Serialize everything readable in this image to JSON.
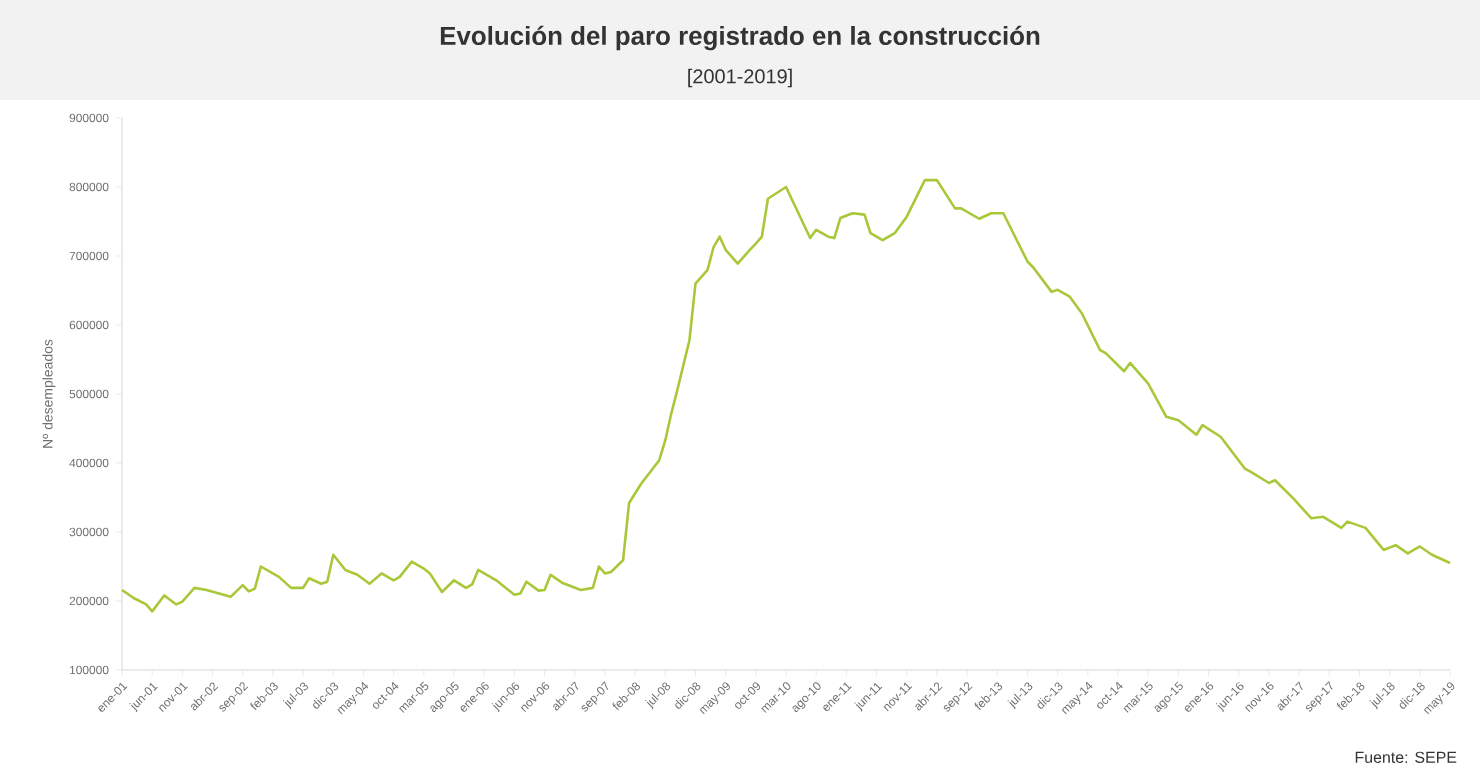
{
  "chart_data": {
    "type": "line",
    "title": "Evolución del paro registrado en la construcción",
    "subtitle": "[2001-2019]",
    "ylabel": "Nº desempleados",
    "annotations": [
      "Fuente: SEPE"
    ],
    "x": [
      "2001-01",
      "2001-03",
      "2001-05",
      "2001-06",
      "2001-08",
      "2001-10",
      "2001-11",
      "2002-01",
      "2002-03",
      "2002-07",
      "2002-09",
      "2002-10",
      "2002-11",
      "2002-12",
      "2003-03",
      "2003-05",
      "2003-07",
      "2003-08",
      "2003-10",
      "2003-11",
      "2003-12",
      "2004-02",
      "2004-04",
      "2004-06",
      "2004-08",
      "2004-10",
      "2004-11",
      "2005-01",
      "2005-03",
      "2005-04",
      "2005-06",
      "2005-08",
      "2005-10",
      "2005-11",
      "2005-12",
      "2006-03",
      "2006-06",
      "2006-07",
      "2006-08",
      "2006-10",
      "2006-11",
      "2006-12",
      "2007-02",
      "2007-05",
      "2007-07",
      "2007-08",
      "2007-09",
      "2007-10",
      "2007-12",
      "2008-01",
      "2008-03",
      "2008-06",
      "2008-07",
      "2008-08",
      "2008-09",
      "2008-11",
      "2008-12",
      "2009-02",
      "2009-03",
      "2009-04",
      "2009-05",
      "2009-07",
      "2009-09",
      "2009-10",
      "2009-11",
      "2009-12",
      "2010-03",
      "2010-07",
      "2010-08",
      "2010-10",
      "2010-11",
      "2010-12",
      "2011-02",
      "2011-04",
      "2011-05",
      "2011-07",
      "2011-09",
      "2011-11",
      "2012-02",
      "2012-04",
      "2012-07",
      "2012-08",
      "2012-11",
      "2013-01",
      "2013-03",
      "2013-07",
      "2013-08",
      "2013-11",
      "2013-12",
      "2014-02",
      "2014-04",
      "2014-07",
      "2014-08",
      "2014-11",
      "2014-12",
      "2015-03",
      "2015-06",
      "2015-08",
      "2015-11",
      "2015-12",
      "2016-03",
      "2016-07",
      "2016-08",
      "2016-11",
      "2016-12",
      "2017-03",
      "2017-06",
      "2017-08",
      "2017-11",
      "2017-12",
      "2018-03",
      "2018-06",
      "2018-08",
      "2018-10",
      "2018-12",
      "2019-02",
      "2019-05"
    ],
    "series": [
      {
        "color": "#a8c83a",
        "values": [
          216000,
          204000,
          195000,
          185000,
          208000,
          195000,
          199000,
          219000,
          216000,
          206000,
          223000,
          214000,
          218000,
          250000,
          235000,
          219000,
          219000,
          233000,
          225000,
          228000,
          267000,
          245000,
          238000,
          225000,
          240000,
          230000,
          235000,
          257000,
          247000,
          240000,
          213000,
          230000,
          219000,
          224000,
          245000,
          230000,
          209000,
          211000,
          228000,
          215000,
          216000,
          238000,
          226000,
          216000,
          219000,
          250000,
          240000,
          242000,
          259000,
          342000,
          370000,
          404000,
          433000,
          472000,
          506000,
          578000,
          660000,
          680000,
          713000,
          728000,
          709000,
          689000,
          709000,
          718000,
          728000,
          783000,
          800000,
          726000,
          738000,
          728000,
          726000,
          755000,
          762000,
          760000,
          733000,
          723000,
          733000,
          757000,
          810000,
          810000,
          769000,
          769000,
          754000,
          762000,
          762000,
          692000,
          683000,
          648000,
          651000,
          641000,
          617000,
          564000,
          559000,
          533000,
          545000,
          515000,
          467000,
          462000,
          441000,
          455000,
          438000,
          392000,
          387000,
          371000,
          375000,
          349000,
          320000,
          322000,
          306000,
          315000,
          306000,
          274000,
          281000,
          269000,
          279000,
          267000,
          255000
        ]
      }
    ],
    "xlim": [
      "2001-01",
      "2019-05"
    ],
    "xticks": [
      {
        "value": "2001-01",
        "label": "ene-01"
      },
      {
        "value": "2001-06",
        "label": "jun-01"
      },
      {
        "value": "2001-11",
        "label": "nov-01"
      },
      {
        "value": "2002-04",
        "label": "abr-02"
      },
      {
        "value": "2002-09",
        "label": "sep-02"
      },
      {
        "value": "2003-02",
        "label": "feb-03"
      },
      {
        "value": "2003-07",
        "label": "jul-03"
      },
      {
        "value": "2003-12",
        "label": "dic-03"
      },
      {
        "value": "2004-05",
        "label": "may-04"
      },
      {
        "value": "2004-10",
        "label": "oct-04"
      },
      {
        "value": "2005-03",
        "label": "mar-05"
      },
      {
        "value": "2005-08",
        "label": "ago-05"
      },
      {
        "value": "2006-01",
        "label": "ene-06"
      },
      {
        "value": "2006-06",
        "label": "jun-06"
      },
      {
        "value": "2006-11",
        "label": "nov-06"
      },
      {
        "value": "2007-04",
        "label": "abr-07"
      },
      {
        "value": "2007-09",
        "label": "sep-07"
      },
      {
        "value": "2008-02",
        "label": "feb-08"
      },
      {
        "value": "2008-07",
        "label": "jul-08"
      },
      {
        "value": "2008-12",
        "label": "dic-08"
      },
      {
        "value": "2009-05",
        "label": "may-09"
      },
      {
        "value": "2009-10",
        "label": "oct-09"
      },
      {
        "value": "2010-03",
        "label": "mar-10"
      },
      {
        "value": "2010-08",
        "label": "ago-10"
      },
      {
        "value": "2011-01",
        "label": "ene-11"
      },
      {
        "value": "2011-06",
        "label": "jun-11"
      },
      {
        "value": "2011-11",
        "label": "nov-11"
      },
      {
        "value": "2012-04",
        "label": "abr-12"
      },
      {
        "value": "2012-09",
        "label": "sep-12"
      },
      {
        "value": "2013-02",
        "label": "feb-13"
      },
      {
        "value": "2013-07",
        "label": "jul-13"
      },
      {
        "value": "2013-12",
        "label": "dic-13"
      },
      {
        "value": "2014-05",
        "label": "may-14"
      },
      {
        "value": "2014-10",
        "label": "oct-14"
      },
      {
        "value": "2015-03",
        "label": "mar-15"
      },
      {
        "value": "2015-08",
        "label": "ago-15"
      },
      {
        "value": "2016-01",
        "label": "ene-16"
      },
      {
        "value": "2016-06",
        "label": "jun-16"
      },
      {
        "value": "2016-11",
        "label": "nov-16"
      },
      {
        "value": "2017-04",
        "label": "abr-17"
      },
      {
        "value": "2017-09",
        "label": "sep-17"
      },
      {
        "value": "2018-02",
        "label": "feb-18"
      },
      {
        "value": "2018-07",
        "label": "jul-18"
      },
      {
        "value": "2018-12",
        "label": "dic-18"
      },
      {
        "value": "2019-05",
        "label": "may-19"
      }
    ],
    "ylim": [
      100000,
      900000
    ],
    "yticks": [
      100000,
      200000,
      300000,
      400000,
      500000,
      600000,
      700000,
      800000,
      900000
    ],
    "grid": false,
    "legend": false,
    "marker": "none",
    "line_style": "solid"
  }
}
